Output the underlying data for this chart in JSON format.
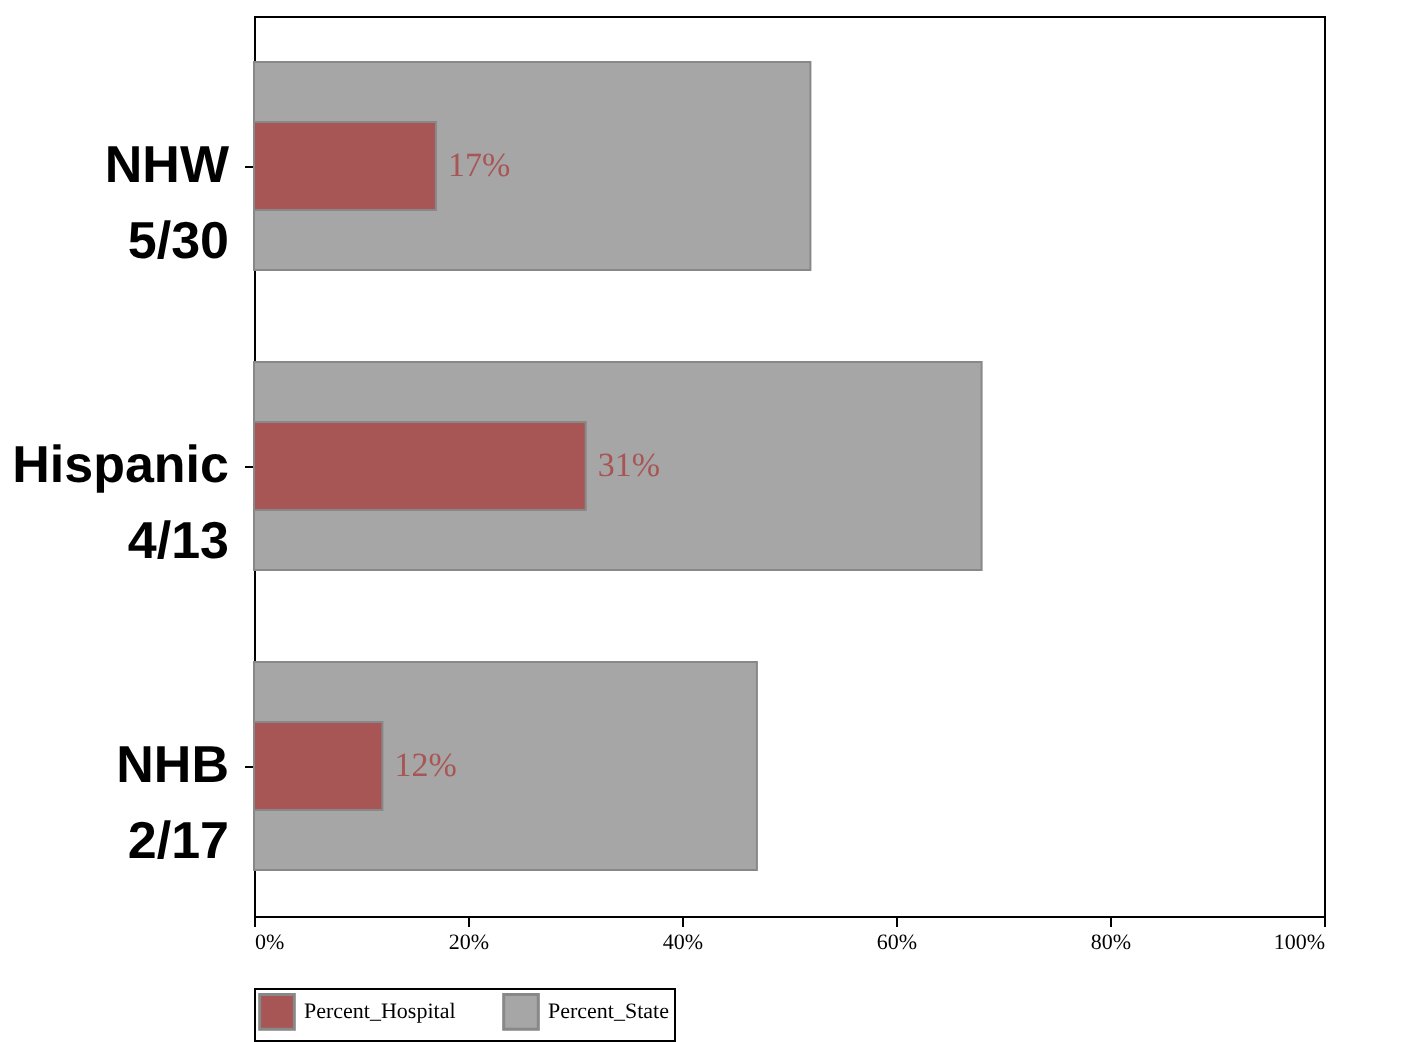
{
  "chart_data": {
    "type": "bar",
    "orientation": "horizontal",
    "categories": [
      "NHW\n5/30",
      "Hispanic\n4/13",
      "NHB\n2/17"
    ],
    "series": [
      {
        "name": "Percent_State",
        "color": "#a6a6a6",
        "values": [
          52,
          68,
          47
        ]
      },
      {
        "name": "Percent_Hospital",
        "color": "#a85555",
        "values": [
          17,
          31,
          12
        ],
        "value_labels": [
          "17%",
          "31%",
          "12%"
        ]
      }
    ],
    "xlim": [
      0,
      100
    ],
    "xticks": [
      {
        "value": 0,
        "label": "0%"
      },
      {
        "value": 20,
        "label": "20%"
      },
      {
        "value": 40,
        "label": "40%"
      },
      {
        "value": 60,
        "label": "60%"
      },
      {
        "value": 80,
        "label": "80%"
      },
      {
        "value": 100,
        "label": "100%"
      }
    ],
    "legend": "bottom",
    "grid": false
  }
}
